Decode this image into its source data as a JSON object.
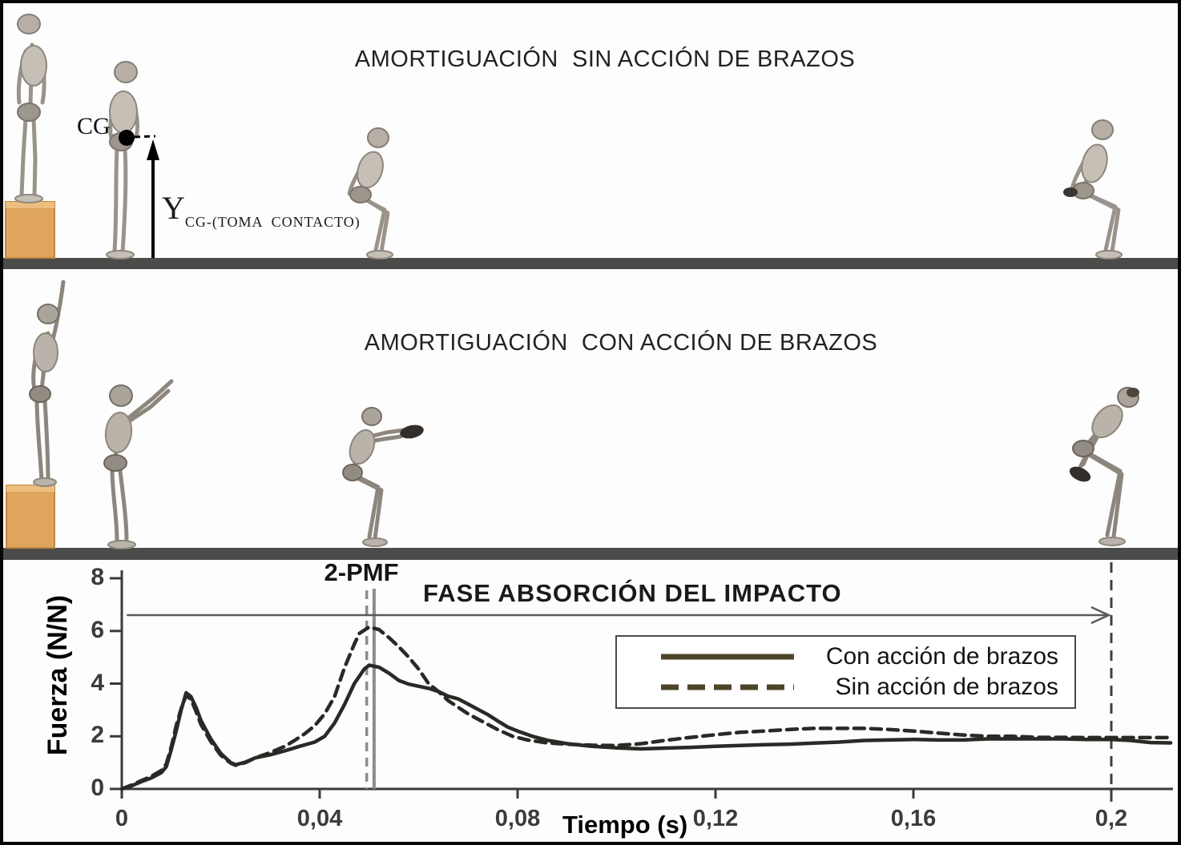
{
  "panels": {
    "top": {
      "title": "AMORTIGUACIÓN  SIN ACCIÓN DE BRAZOS",
      "cg_label": "CG",
      "y_label_main": "Y",
      "y_label_sub": "CG-(TOMA  CONTACTO)"
    },
    "middle": {
      "title": "AMORTIGUACIÓN  CON ACCIÓN DE BRAZOS"
    }
  },
  "chart": {
    "annotations": {
      "pmf": "2-PMF",
      "fase": "FASE ABSORCIÓN DEL IMPACTO"
    },
    "legend": [
      {
        "label": "Con acción de brazos",
        "style": "solid"
      },
      {
        "label": "Sin acción de brazos",
        "style": "dashed"
      }
    ],
    "colors": {
      "curve": "#2b2926",
      "legend_line": "#4d4527",
      "marker_gray": "#8c8c8c",
      "marker_dark": "#3f3f3f",
      "axis": "#3a3a3a",
      "ground": "#4b4b49",
      "box_wood": "#dfa55c"
    }
  },
  "chart_data": {
    "type": "line",
    "title": "",
    "xlabel": "Tiempo (s)",
    "ylabel": "Fuerza (N/N)",
    "xlim": [
      0,
      0.212
    ],
    "ylim": [
      0,
      8
    ],
    "grid": false,
    "legend_position": "center-right",
    "xticks": [
      0,
      0.04,
      0.08,
      0.12,
      0.16,
      0.2
    ],
    "xtick_labels": [
      "0",
      "0,04",
      "0,08",
      "0,12",
      "0,16",
      "0,2"
    ],
    "yticks": [
      0,
      2,
      4,
      6,
      8
    ],
    "ytick_labels": [
      "0",
      "2",
      "4",
      "6",
      "8"
    ],
    "series": [
      {
        "name": "Con acción de brazos",
        "style": "solid",
        "points": [
          [
            0,
            0
          ],
          [
            0.002,
            0.12
          ],
          [
            0.004,
            0.28
          ],
          [
            0.006,
            0.42
          ],
          [
            0.008,
            0.62
          ],
          [
            0.009,
            0.85
          ],
          [
            0.01,
            1.5
          ],
          [
            0.011,
            2.2
          ],
          [
            0.012,
            3.0
          ],
          [
            0.013,
            3.65
          ],
          [
            0.014,
            3.5
          ],
          [
            0.015,
            3.1
          ],
          [
            0.016,
            2.6
          ],
          [
            0.018,
            1.9
          ],
          [
            0.02,
            1.35
          ],
          [
            0.022,
            1.0
          ],
          [
            0.023,
            0.92
          ],
          [
            0.025,
            1.02
          ],
          [
            0.027,
            1.18
          ],
          [
            0.03,
            1.3
          ],
          [
            0.033,
            1.45
          ],
          [
            0.036,
            1.62
          ],
          [
            0.039,
            1.78
          ],
          [
            0.041,
            2.0
          ],
          [
            0.043,
            2.5
          ],
          [
            0.045,
            3.2
          ],
          [
            0.047,
            4.0
          ],
          [
            0.049,
            4.55
          ],
          [
            0.05,
            4.7
          ],
          [
            0.052,
            4.62
          ],
          [
            0.054,
            4.4
          ],
          [
            0.056,
            4.12
          ],
          [
            0.058,
            3.98
          ],
          [
            0.06,
            3.9
          ],
          [
            0.062,
            3.82
          ],
          [
            0.064,
            3.7
          ],
          [
            0.066,
            3.52
          ],
          [
            0.068,
            3.42
          ],
          [
            0.07,
            3.22
          ],
          [
            0.072,
            3.02
          ],
          [
            0.074,
            2.82
          ],
          [
            0.076,
            2.58
          ],
          [
            0.078,
            2.35
          ],
          [
            0.08,
            2.2
          ],
          [
            0.083,
            2.0
          ],
          [
            0.086,
            1.85
          ],
          [
            0.09,
            1.72
          ],
          [
            0.095,
            1.62
          ],
          [
            0.1,
            1.56
          ],
          [
            0.105,
            1.52
          ],
          [
            0.11,
            1.55
          ],
          [
            0.115,
            1.58
          ],
          [
            0.12,
            1.62
          ],
          [
            0.125,
            1.65
          ],
          [
            0.13,
            1.68
          ],
          [
            0.135,
            1.7
          ],
          [
            0.14,
            1.74
          ],
          [
            0.145,
            1.78
          ],
          [
            0.15,
            1.84
          ],
          [
            0.155,
            1.86
          ],
          [
            0.16,
            1.88
          ],
          [
            0.165,
            1.86
          ],
          [
            0.17,
            1.86
          ],
          [
            0.175,
            1.9
          ],
          [
            0.18,
            1.9
          ],
          [
            0.185,
            1.9
          ],
          [
            0.19,
            1.9
          ],
          [
            0.195,
            1.88
          ],
          [
            0.2,
            1.88
          ],
          [
            0.204,
            1.84
          ],
          [
            0.208,
            1.76
          ],
          [
            0.212,
            1.75
          ]
        ]
      },
      {
        "name": "Sin acción de brazos",
        "style": "dashed",
        "points": [
          [
            0,
            0
          ],
          [
            0.002,
            0.15
          ],
          [
            0.004,
            0.32
          ],
          [
            0.006,
            0.48
          ],
          [
            0.008,
            0.7
          ],
          [
            0.009,
            0.95
          ],
          [
            0.01,
            1.6
          ],
          [
            0.011,
            2.4
          ],
          [
            0.012,
            3.05
          ],
          [
            0.013,
            3.55
          ],
          [
            0.014,
            3.4
          ],
          [
            0.015,
            2.95
          ],
          [
            0.016,
            2.45
          ],
          [
            0.018,
            1.8
          ],
          [
            0.02,
            1.28
          ],
          [
            0.022,
            0.98
          ],
          [
            0.023,
            0.9
          ],
          [
            0.025,
            1.0
          ],
          [
            0.027,
            1.18
          ],
          [
            0.03,
            1.38
          ],
          [
            0.033,
            1.62
          ],
          [
            0.035,
            1.85
          ],
          [
            0.037,
            2.1
          ],
          [
            0.039,
            2.4
          ],
          [
            0.041,
            2.85
          ],
          [
            0.043,
            3.5
          ],
          [
            0.045,
            4.6
          ],
          [
            0.047,
            5.5
          ],
          [
            0.048,
            5.9
          ],
          [
            0.05,
            6.15
          ],
          [
            0.052,
            6.05
          ],
          [
            0.054,
            5.75
          ],
          [
            0.056,
            5.4
          ],
          [
            0.058,
            5.0
          ],
          [
            0.06,
            4.55
          ],
          [
            0.062,
            4.0
          ],
          [
            0.064,
            3.7
          ],
          [
            0.066,
            3.35
          ],
          [
            0.068,
            3.1
          ],
          [
            0.07,
            2.85
          ],
          [
            0.073,
            2.55
          ],
          [
            0.076,
            2.25
          ],
          [
            0.079,
            2.0
          ],
          [
            0.082,
            1.86
          ],
          [
            0.086,
            1.75
          ],
          [
            0.09,
            1.7
          ],
          [
            0.095,
            1.66
          ],
          [
            0.1,
            1.65
          ],
          [
            0.105,
            1.72
          ],
          [
            0.11,
            1.85
          ],
          [
            0.115,
            1.96
          ],
          [
            0.12,
            2.06
          ],
          [
            0.125,
            2.15
          ],
          [
            0.13,
            2.2
          ],
          [
            0.135,
            2.26
          ],
          [
            0.14,
            2.3
          ],
          [
            0.145,
            2.3
          ],
          [
            0.15,
            2.3
          ],
          [
            0.155,
            2.26
          ],
          [
            0.16,
            2.2
          ],
          [
            0.165,
            2.12
          ],
          [
            0.17,
            2.05
          ],
          [
            0.175,
            2.0
          ],
          [
            0.18,
            2.0
          ],
          [
            0.185,
            1.96
          ],
          [
            0.19,
            1.96
          ],
          [
            0.195,
            1.95
          ],
          [
            0.2,
            1.95
          ],
          [
            0.206,
            1.95
          ],
          [
            0.212,
            1.95
          ]
        ]
      }
    ],
    "annotations": [
      {
        "type": "vline",
        "x": 0.0495,
        "style": "dashed-gray",
        "label": "2-PMF"
      },
      {
        "type": "vline",
        "x": 0.051,
        "style": "solid-gray",
        "label": "2-PMF"
      },
      {
        "type": "vline",
        "x": 0.2,
        "style": "dashed-dark",
        "label": ""
      },
      {
        "type": "harrow",
        "y": 6.6,
        "x0": 0.001,
        "x1": 0.1995,
        "label": "FASE ABSORCIÓN DEL IMPACTO"
      }
    ]
  }
}
